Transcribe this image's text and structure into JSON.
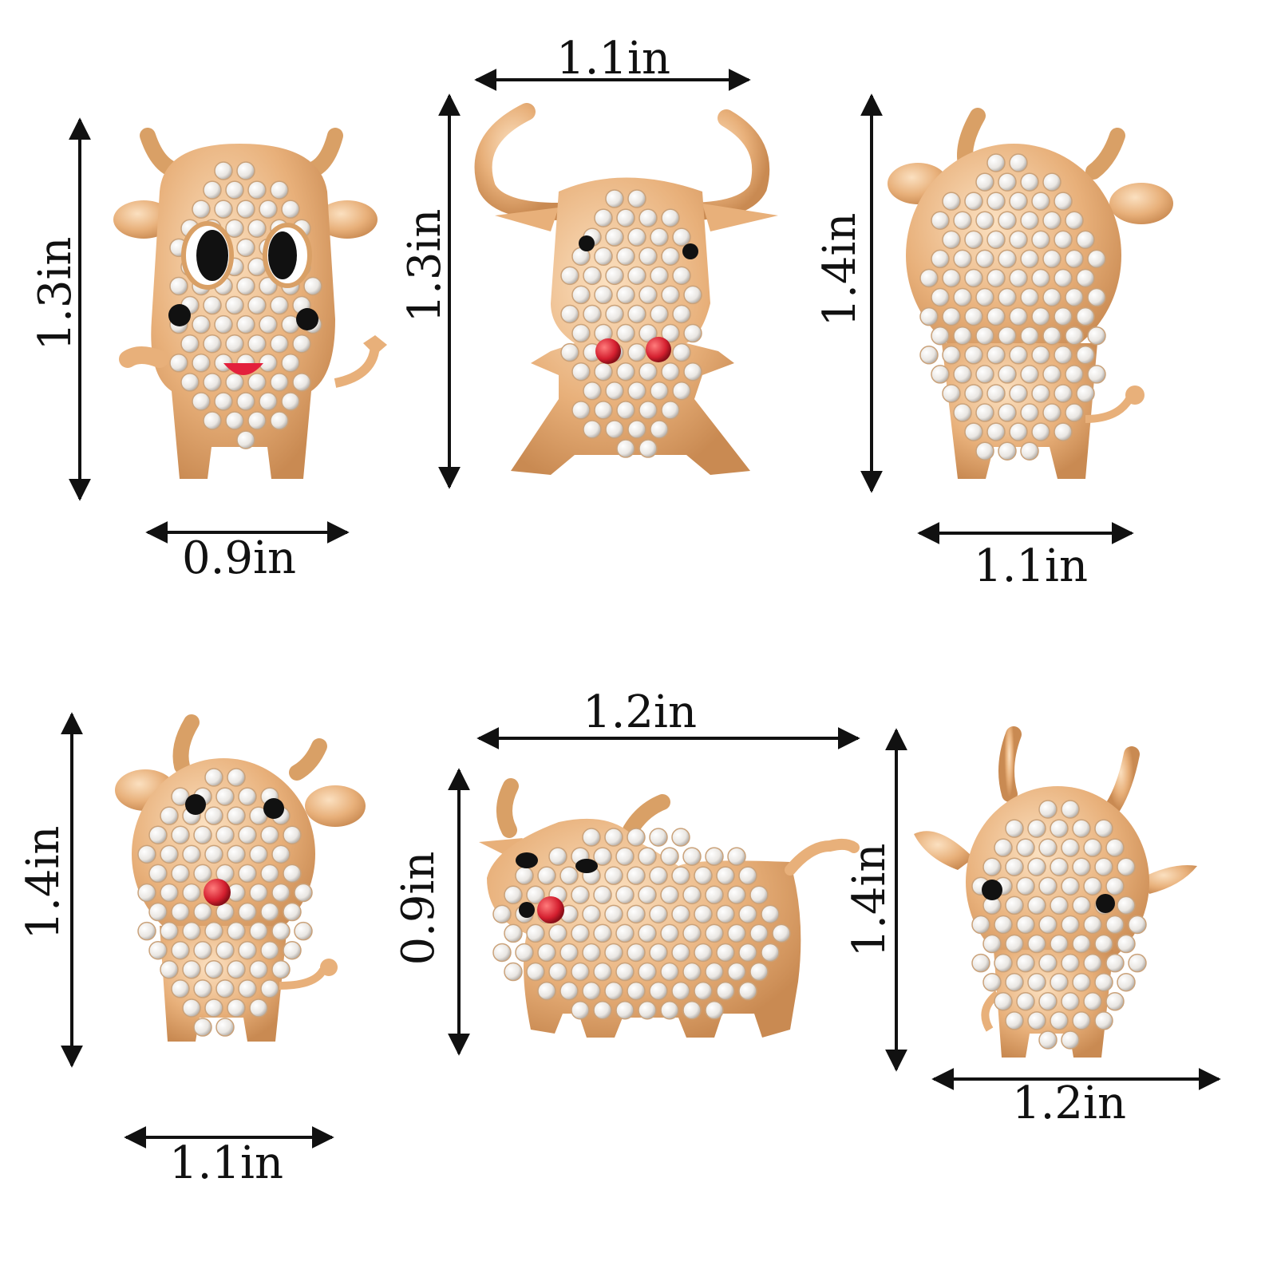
{
  "brooches": [
    {
      "name": "cartoon-cow-enamel-face",
      "width": "0.9in",
      "height": "1.3in"
    },
    {
      "name": "long-horn-bull-red-bowtie",
      "width": "1.1in",
      "height": "1.3in"
    },
    {
      "name": "ab-crystal-cow",
      "width": "1.1in",
      "height": "1.4in"
    },
    {
      "name": "sitting-cow-red-nose",
      "width": "1.1in",
      "height": "1.4in"
    },
    {
      "name": "standing-bull-side-view",
      "width": "1.2in",
      "height": "0.9in"
    },
    {
      "name": "big-head-calf",
      "width": "1.2in",
      "height": "1.4in"
    }
  ],
  "colors": {
    "gold": "#e8b07a",
    "gold_dark": "#c98a52",
    "crystal": "#f4f1ec",
    "enamel_black": "#111111",
    "ruby": "#d41f2f",
    "arrow": "#111111"
  }
}
